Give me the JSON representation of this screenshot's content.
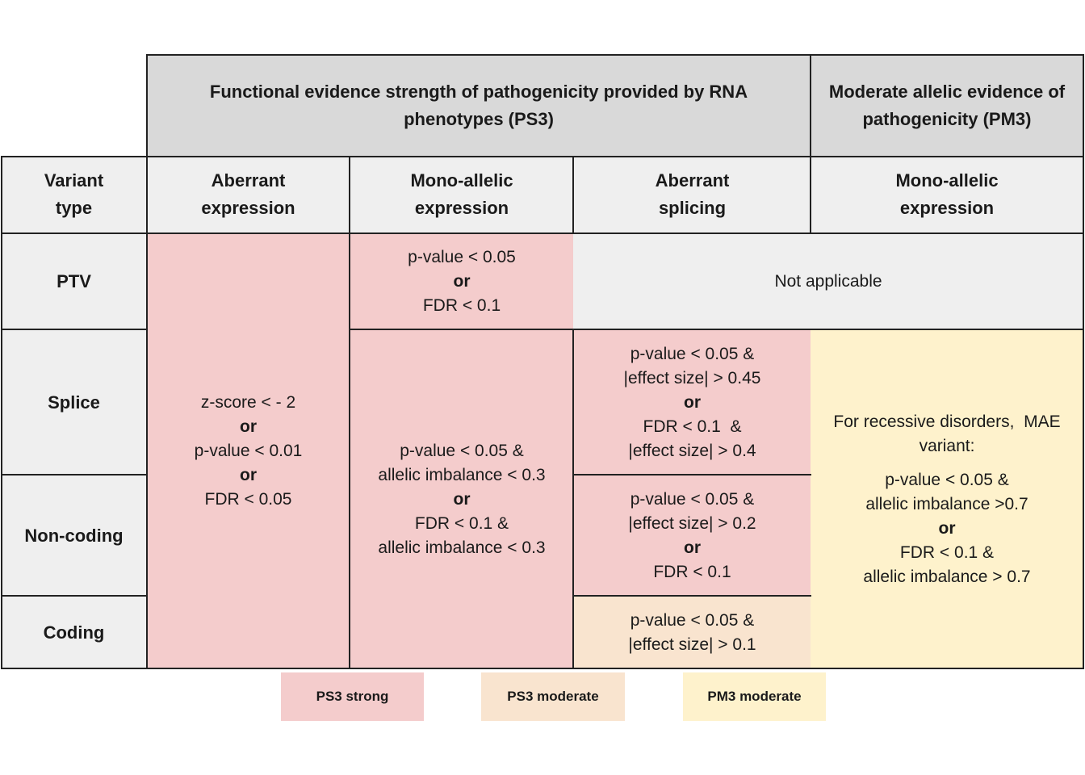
{
  "header": {
    "ps3_title": "Functional evidence strength of pathogenicity provided by RNA phenotypes (PS3)",
    "pm3_title": "Moderate allelic evidence of pathogenicity (PM3)"
  },
  "columns": {
    "variant_type": [
      "Variant",
      "type"
    ],
    "aberrant_expression": [
      "Aberrant",
      "expression"
    ],
    "mono_allelic_ps3": [
      "Mono-allelic",
      "expression"
    ],
    "aberrant_splicing": [
      "Aberrant",
      "splicing"
    ],
    "mono_allelic_pm3": [
      "Mono-allelic",
      "expression"
    ]
  },
  "rows": {
    "ptv": "PTV",
    "splice": "Splice",
    "noncoding": "Non-coding",
    "coding": "Coding"
  },
  "cells": {
    "aberrant_expression": [
      "z-score < - 2",
      "or",
      "p-value < 0.01",
      "or",
      "FDR < 0.05"
    ],
    "mono_ptv": [
      "p-value < 0.05",
      "or",
      "FDR < 0.1"
    ],
    "not_applicable": "Not applicable",
    "mono_other": [
      "p-value < 0.05 &",
      "allelic imbalance < 0.3",
      "or",
      "FDR < 0.1 &",
      "allelic imbalance < 0.3"
    ],
    "splice_splice": [
      "p-value < 0.05 &",
      "|effect size| > 0.45",
      "or",
      "FDR < 0.1  &",
      "|effect size| > 0.4"
    ],
    "splice_noncoding": [
      "p-value < 0.05 &",
      "|effect size| > 0.2",
      "or",
      "FDR < 0.1"
    ],
    "splice_coding": [
      "p-value < 0.05 &",
      "|effect size| > 0.1"
    ],
    "pm3": [
      "For recessive disorders,  MAE",
      "variant:",
      "",
      "p-value < 0.05 &",
      "allelic imbalance >0.7",
      "or",
      "FDR < 0.1 &",
      "allelic imbalance > 0.7"
    ]
  },
  "legend": [
    {
      "label": "PS3 strong",
      "color": "#f4cccc"
    },
    {
      "label": "PS3 moderate",
      "color": "#f9e4cf"
    },
    {
      "label": "PM3 moderate",
      "color": "#fef2cc"
    }
  ]
}
